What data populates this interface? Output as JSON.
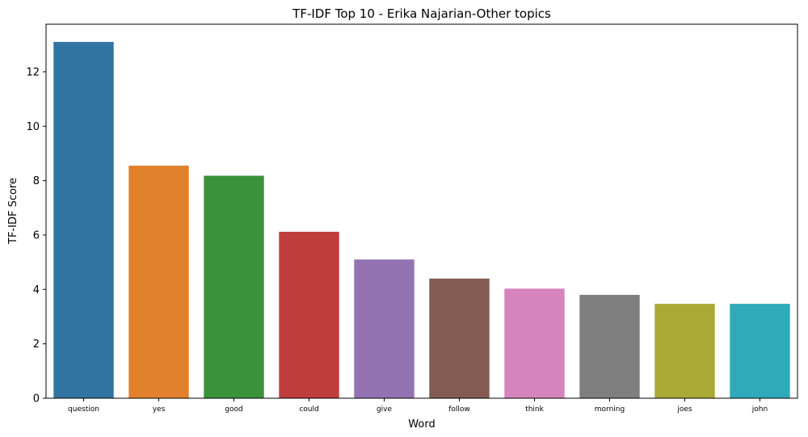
{
  "chart_data": {
    "type": "bar",
    "title": "TF-IDF Top 10 - Erika Najarian-Other topics",
    "xlabel": "Word",
    "ylabel": "TF-IDF Score",
    "categories": [
      "question",
      "yes",
      "good",
      "could",
      "give",
      "follow",
      "think",
      "morning",
      "joes",
      "john"
    ],
    "values": [
      13.1,
      8.55,
      8.18,
      6.12,
      5.1,
      4.4,
      4.03,
      3.8,
      3.47,
      3.47
    ],
    "colors": [
      "#3274a1",
      "#e1812c",
      "#3a923a",
      "#c03d3e",
      "#9372b2",
      "#845b53",
      "#d684bd",
      "#7f7f7f",
      "#a9aa35",
      "#2eaab8"
    ],
    "ylim": [
      0,
      13.75
    ],
    "yticks": [
      0,
      2,
      4,
      6,
      8,
      10,
      12
    ],
    "grid": false,
    "legend": false
  }
}
